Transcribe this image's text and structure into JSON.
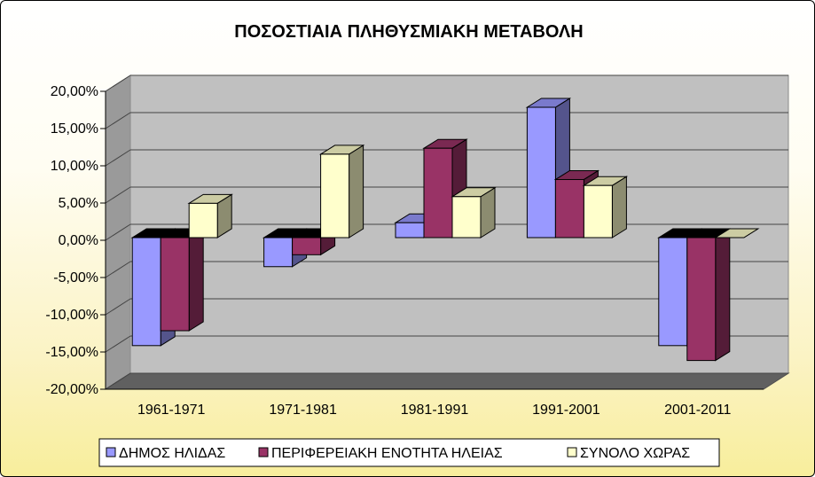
{
  "chart_data": {
    "type": "bar",
    "title": "ΠΟΣΟΣΤΙΑΙΑ ΠΛΗΘΥΣΜΙΑΚΗ ΜΕΤΑΒΟΛΗ",
    "categories": [
      "1961-1971",
      "1971-1981",
      "1981-1991",
      "1991-2001",
      "2001-2011"
    ],
    "series": [
      {
        "name": "ΔΗΜΟΣ ΗΛΙΔΑΣ",
        "color": "#9999ff",
        "values": [
          -14.5,
          -3.9,
          2.0,
          17.5,
          -14.5
        ]
      },
      {
        "name": "ΠΕΡΙΦΕΡΕΙΑΚΗ ΕΝΟΤΗΤΑ ΗΛΕΙΑΣ",
        "color": "#993366",
        "values": [
          -12.5,
          -2.3,
          12.0,
          7.8,
          -16.5
        ]
      },
      {
        "name": "ΣΥΝΟΛΟ ΧΩΡΑΣ",
        "color": "#ffffcc",
        "values": [
          4.6,
          11.2,
          5.5,
          7.0,
          0.0
        ]
      }
    ],
    "ylim": [
      -20,
      20
    ],
    "ytick_step": 5,
    "ytick_labels": [
      "-20,00%",
      "-15,00%",
      "-10,00%",
      "-5,00%",
      "0,00%",
      "5,00%",
      "10,00%",
      "15,00%",
      "20,00%"
    ],
    "xlabel": "",
    "ylabel": "",
    "grid": true,
    "legend_position": "bottom",
    "style": "3d-clustered-column"
  }
}
